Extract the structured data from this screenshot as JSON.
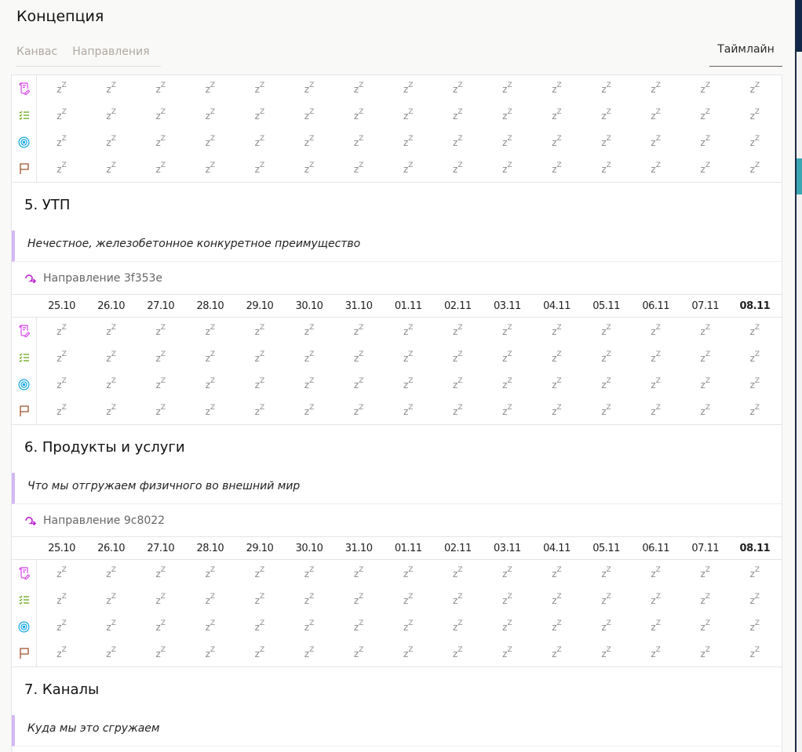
{
  "header": {
    "title": "Концепция",
    "tabs": [
      {
        "label": "Канвас"
      },
      {
        "label": "Направления"
      }
    ],
    "active_tab": "Таймлайн"
  },
  "row_icons": [
    {
      "icon": "scroll-edit-icon",
      "color": "#d946ef"
    },
    {
      "icon": "checklist-icon",
      "color": "#65a30d"
    },
    {
      "icon": "target-icon",
      "color": "#0ea5e9"
    },
    {
      "icon": "flag-icon",
      "color": "#a0522d"
    }
  ],
  "empty_cell": "z",
  "empty_cell_sup": "Z",
  "dates": [
    "25.10",
    "26.10",
    "27.10",
    "28.10",
    "29.10",
    "30.10",
    "31.10",
    "01.11",
    "02.11",
    "03.11",
    "04.11",
    "05.11",
    "06.11",
    "07.11",
    "08.11"
  ],
  "current_date": "08.11",
  "sections": [
    {
      "title": "5. УТП",
      "description": "Нечестное, железобетонное конкуретное преимущество",
      "direction": "Направление 3f353e"
    },
    {
      "title": "6. Продукты и услуги",
      "description": "Что мы отгружаем физичного во внешний мир",
      "direction": "Направление 9c8022"
    },
    {
      "title": "7. Каналы",
      "description": "Куда мы это сгружаем"
    }
  ],
  "accent": "#c026d3"
}
